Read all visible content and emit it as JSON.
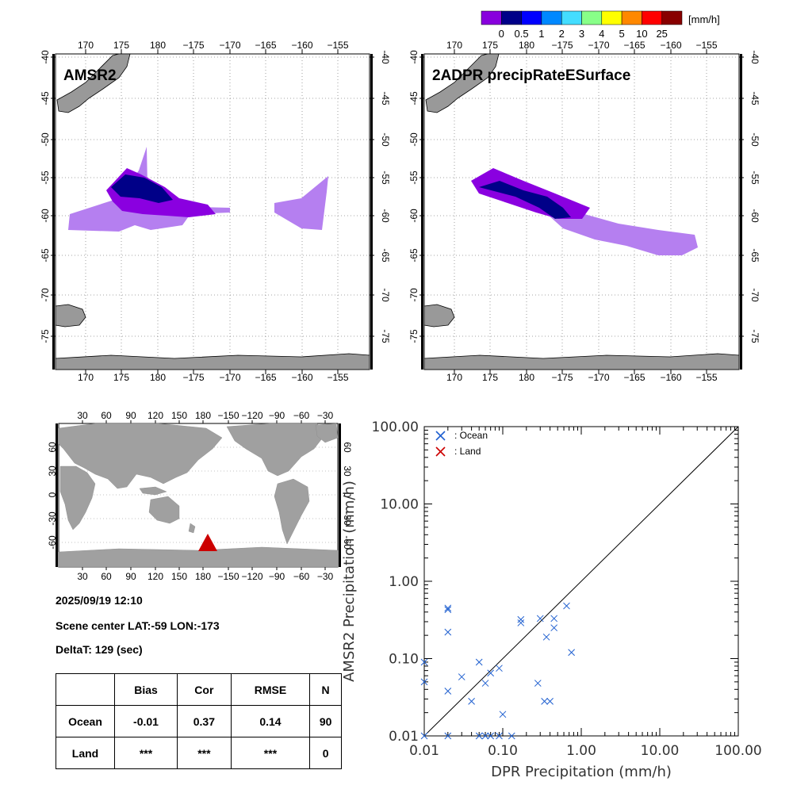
{
  "colorbar": {
    "colors": [
      "#8800dd",
      "#000088",
      "#0000ff",
      "#0088ff",
      "#44ddff",
      "#88ff88",
      "#ffff00",
      "#ff8800",
      "#ff0000",
      "#880000"
    ],
    "labels": [
      "0",
      "0.5",
      "1",
      "2",
      "3",
      "4",
      "5",
      "10",
      "25"
    ],
    "unit": "[mm/h]"
  },
  "maps": [
    {
      "title": "AMSR2",
      "lon_ticks": [
        "170",
        "175",
        "180",
        "−175",
        "−170",
        "−165",
        "−160",
        "−155"
      ],
      "lat_ticks": [
        "-40",
        "-45",
        "-50",
        "-55",
        "-60",
        "-65",
        "-70",
        "-75"
      ]
    },
    {
      "title": "2ADPR precipRateESurface",
      "lon_ticks": [
        "170",
        "175",
        "180",
        "−175",
        "−170",
        "−165",
        "−160",
        "−155"
      ],
      "lat_ticks": [
        "-40",
        "-45",
        "-50",
        "-55",
        "-60",
        "-65",
        "-70",
        "-75"
      ]
    }
  ],
  "world_map": {
    "lon_ticks": [
      "30",
      "60",
      "90",
      "120",
      "150",
      "180",
      "−150",
      "−120",
      "−90",
      "−60",
      "−30"
    ],
    "lat_ticks": [
      "60",
      "30",
      "0",
      "-30",
      "-60"
    ],
    "marker_color": "#cc0000"
  },
  "info": {
    "datetime": "2025/09/19 12:10",
    "scene_center": "Scene center LAT:-59   LON:-173",
    "delta_t": "DeltaT:  129 (sec)"
  },
  "stats_table": {
    "headers": [
      "",
      "Bias",
      "Cor",
      "RMSE",
      "N"
    ],
    "rows": [
      [
        "Ocean",
        "-0.01",
        "0.37",
        "0.14",
        "90"
      ],
      [
        "Land",
        "***",
        "***",
        "***",
        "0"
      ]
    ]
  },
  "chart_data": {
    "type": "scatter",
    "xlabel": "DPR Precipitation (mm/h)",
    "ylabel": "AMSR2 Precipitation (mm/h)",
    "xscale": "log",
    "yscale": "log",
    "xlim": [
      0.01,
      100
    ],
    "ylim": [
      0.01,
      100
    ],
    "x_tick_labels": [
      "0.01",
      "0.10",
      "1.00",
      "10.00",
      "100.00"
    ],
    "y_tick_labels": [
      "0.01",
      "0.10",
      "1.00",
      "10.00",
      "100.00"
    ],
    "legend": [
      {
        "label": ": Ocean",
        "color": "#2060d0"
      },
      {
        "label": ": Land",
        "color": "#cc0000"
      }
    ],
    "series": [
      {
        "name": "Ocean",
        "color": "#2060d0",
        "points": [
          [
            0.01,
            0.09
          ],
          [
            0.01,
            0.05
          ],
          [
            0.01,
            0.01
          ],
          [
            0.02,
            0.45
          ],
          [
            0.02,
            0.43
          ],
          [
            0.02,
            0.22
          ],
          [
            0.02,
            0.038
          ],
          [
            0.02,
            0.01
          ],
          [
            0.03,
            0.058
          ],
          [
            0.04,
            0.028
          ],
          [
            0.05,
            0.09
          ],
          [
            0.05,
            0.01
          ],
          [
            0.06,
            0.048
          ],
          [
            0.06,
            0.01
          ],
          [
            0.07,
            0.065
          ],
          [
            0.07,
            0.01
          ],
          [
            0.09,
            0.075
          ],
          [
            0.09,
            0.01
          ],
          [
            0.1,
            0.019
          ],
          [
            0.13,
            0.01
          ],
          [
            0.17,
            0.32
          ],
          [
            0.17,
            0.29
          ],
          [
            0.28,
            0.048
          ],
          [
            0.3,
            0.33
          ],
          [
            0.34,
            0.028
          ],
          [
            0.36,
            0.19
          ],
          [
            0.4,
            0.028
          ],
          [
            0.45,
            0.33
          ],
          [
            0.45,
            0.25
          ],
          [
            0.65,
            0.48
          ],
          [
            0.75,
            0.12
          ]
        ]
      },
      {
        "name": "Land",
        "color": "#cc0000",
        "points": []
      }
    ]
  }
}
